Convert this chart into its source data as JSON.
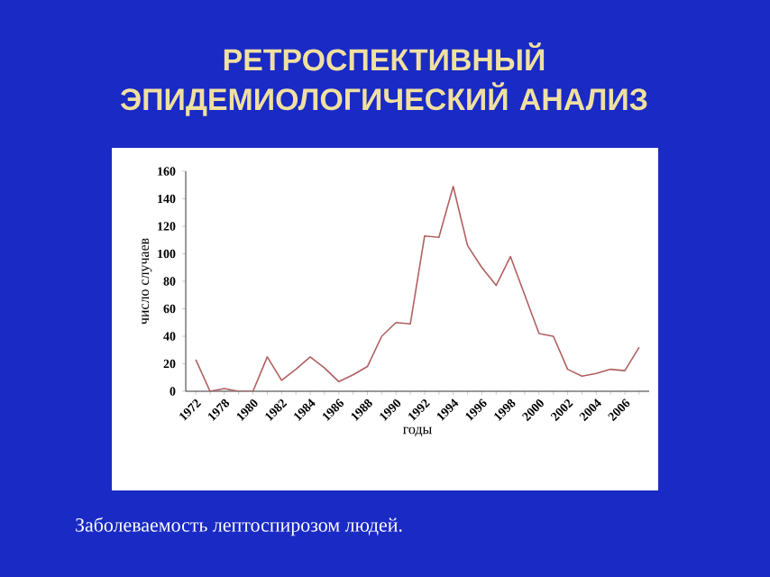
{
  "chart_data": {
    "type": "line",
    "title": "РЕТРОСПЕКТИВНЫЙ ЭПИДЕМИОЛОГИЧЕСКИЙ АНАЛИЗ",
    "xlabel": "годы",
    "ylabel": "число случаев",
    "categories": [
      "1972",
      null,
      "1978",
      null,
      "1980",
      null,
      "1982",
      null,
      "1984",
      null,
      "1986",
      null,
      "1988",
      null,
      "1990",
      null,
      "1992",
      null,
      "1994",
      null,
      "1996",
      null,
      "1998",
      null,
      "2000",
      null,
      "2002",
      null,
      "2004",
      null,
      "2006",
      null
    ],
    "values": [
      23,
      0,
      2,
      0,
      0,
      25,
      8,
      16,
      25,
      17,
      7,
      12,
      18,
      40,
      50,
      49,
      113,
      112,
      149,
      106,
      90,
      77,
      98,
      70,
      42,
      40,
      16,
      11,
      13,
      16,
      15,
      32
    ],
    "color": "#b06060",
    "ylim": [
      0,
      160
    ],
    "yticks": [
      0,
      20,
      40,
      60,
      80,
      100,
      120,
      140,
      160
    ],
    "annotations": [
      "Заболеваемость лептоспирозом людей."
    ]
  }
}
